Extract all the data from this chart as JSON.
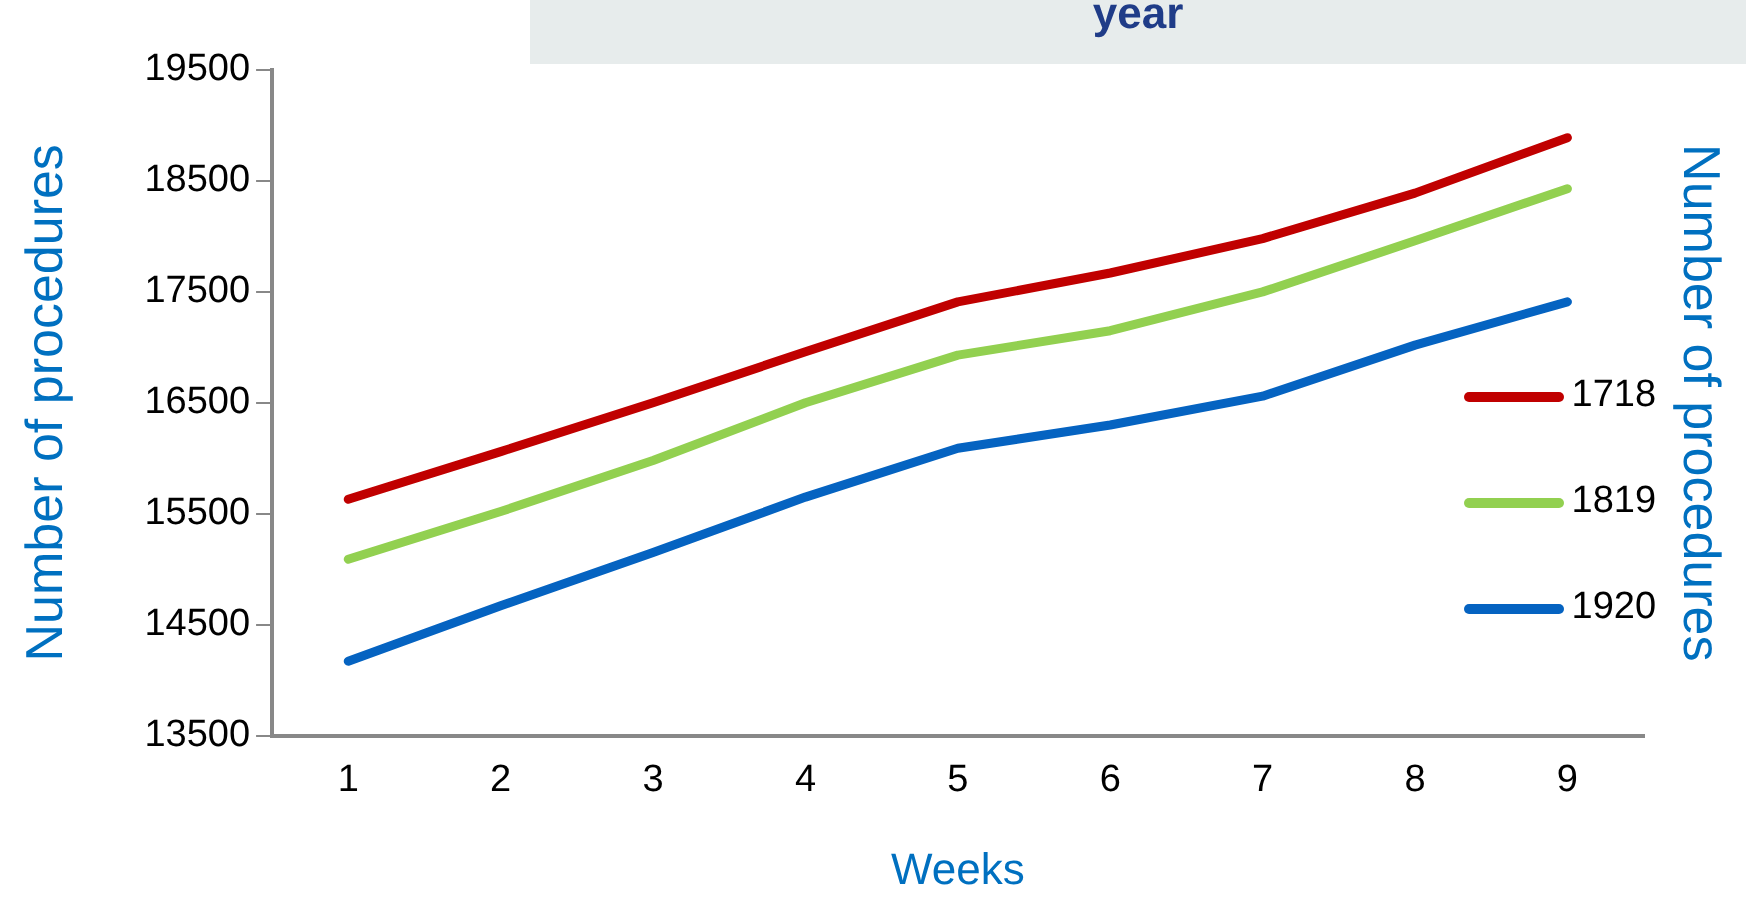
{
  "chart_data": {
    "type": "line",
    "title": "year",
    "xlabel": "Weeks",
    "ylabel": "Number of procedures",
    "y2label": "Number of procedures",
    "categories": [
      "1",
      "2",
      "3",
      "4",
      "5",
      "6",
      "7",
      "8",
      "9"
    ],
    "series": [
      {
        "name": "1718",
        "color": "#c00000",
        "values": [
          15630,
          16060,
          16500,
          16960,
          17410,
          17670,
          17980,
          18390,
          18890
        ]
      },
      {
        "name": "1819",
        "color": "#92d050",
        "values": [
          15090,
          15520,
          15980,
          16500,
          16930,
          17150,
          17500,
          17960,
          18430
        ]
      },
      {
        "name": "1920",
        "color": "#0563c1",
        "values": [
          14170,
          14670,
          15150,
          15650,
          16090,
          16300,
          16560,
          17020,
          17410
        ]
      }
    ],
    "ylim": [
      13500,
      19500
    ],
    "yticks": [
      13500,
      14500,
      15500,
      16500,
      17500,
      18500,
      19500
    ],
    "grid": false,
    "legend": "right",
    "marker": "none",
    "line_style": "solid"
  }
}
